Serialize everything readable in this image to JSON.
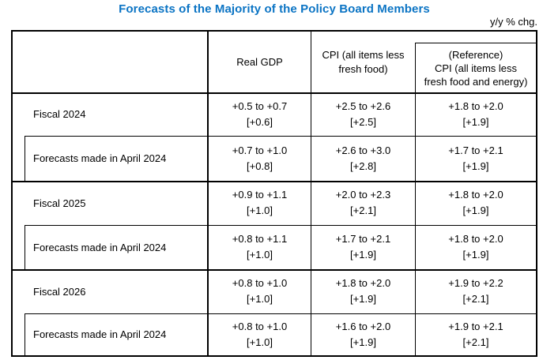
{
  "title": "Forecasts of the Majority of the Policy Board Members",
  "unit_note": "y/y % chg.",
  "header": {
    "real_gdp": "Real GDP",
    "cpi_line1": "CPI (all items less",
    "cpi_line2": "fresh food)",
    "ref_line1": "(Reference)",
    "ref_line2": "CPI (all items less",
    "ref_line3": "fresh food and energy)"
  },
  "colors": {
    "title_blue": "#0b74c4",
    "border": "#000000"
  },
  "rows": [
    {
      "label": "Fiscal 2024",
      "gdp": {
        "range": "+0.5 to +0.7",
        "median": "[+0.6]"
      },
      "cpi": {
        "range": "+2.5 to +2.6",
        "median": "[+2.5]"
      },
      "ref": {
        "range": "+1.8 to +2.0",
        "median": "[+1.9]"
      }
    },
    {
      "label": "Forecasts made in April 2024",
      "gdp": {
        "range": "+0.7 to +1.0",
        "median": "[+0.8]"
      },
      "cpi": {
        "range": "+2.6 to +3.0",
        "median": "[+2.8]"
      },
      "ref": {
        "range": "+1.7 to +2.1",
        "median": "[+1.9]"
      }
    },
    {
      "label": "Fiscal 2025",
      "gdp": {
        "range": "+0.9 to +1.1",
        "median": "[+1.0]"
      },
      "cpi": {
        "range": "+2.0 to +2.3",
        "median": "[+2.1]"
      },
      "ref": {
        "range": "+1.8 to +2.0",
        "median": "[+1.9]"
      }
    },
    {
      "label": "Forecasts made in April 2024",
      "gdp": {
        "range": "+0.8 to +1.1",
        "median": "[+1.0]"
      },
      "cpi": {
        "range": "+1.7 to +2.1",
        "median": "[+1.9]"
      },
      "ref": {
        "range": "+1.8 to +2.0",
        "median": "[+1.9]"
      }
    },
    {
      "label": "Fiscal 2026",
      "gdp": {
        "range": "+0.8 to +1.0",
        "median": "[+1.0]"
      },
      "cpi": {
        "range": "+1.8 to +2.0",
        "median": "[+1.9]"
      },
      "ref": {
        "range": "+1.9 to +2.2",
        "median": "[+2.1]"
      }
    },
    {
      "label": "Forecasts made in April 2024",
      "gdp": {
        "range": "+0.8 to +1.0",
        "median": "[+1.0]"
      },
      "cpi": {
        "range": "+1.6 to +2.0",
        "median": "[+1.9]"
      },
      "ref": {
        "range": "+1.9 to +2.1",
        "median": "[+2.1]"
      }
    }
  ]
}
